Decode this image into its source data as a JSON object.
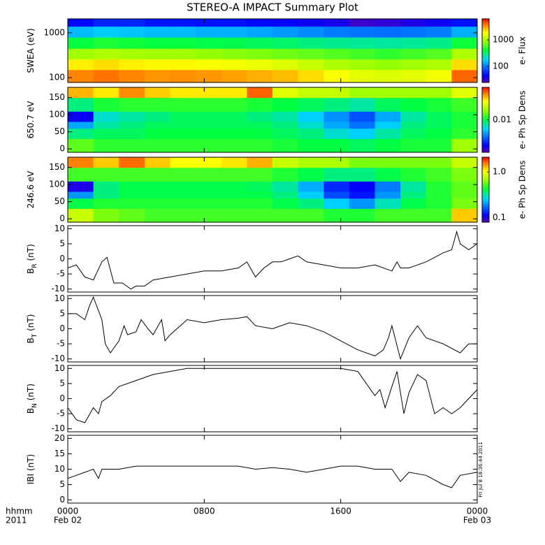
{
  "title": "STEREO-A IMPACT Summary Plot",
  "timestamp": "Fri Jul  8 18:36:44 2011",
  "x_axis": {
    "xlim": [
      0,
      24
    ],
    "xticks": [
      {
        "value": 0,
        "label": "0000"
      },
      {
        "value": 8,
        "label": "0800"
      },
      {
        "value": 16,
        "label": "1600"
      },
      {
        "value": 24,
        "label": "0000"
      }
    ],
    "date_labels": [
      "Feb 02",
      "Feb 03"
    ],
    "left_labels": [
      "hhmm",
      "2011"
    ]
  },
  "chart_data": [
    {
      "type": "heatmap",
      "ylabel": "SWEA (eV)",
      "ylog": true,
      "ylim": [
        78,
        2050
      ],
      "yticks": [
        100,
        1000
      ],
      "zlabel": "e- Flux",
      "zlog": true,
      "zlim": [
        25,
        6200
      ],
      "zticks": [
        100,
        1000
      ],
      "xbins": [
        0,
        1.5,
        3,
        4.5,
        6,
        7.5,
        9,
        10.5,
        12,
        13.5,
        15,
        16.5,
        18,
        19.5,
        21,
        22.5,
        24
      ],
      "ybins": [
        78,
        150,
        260,
        450,
        800,
        1400,
        2050
      ],
      "z": [
        [
          3500,
          3800,
          3500,
          3200,
          3300,
          3200,
          3000,
          2800,
          2600,
          2200,
          1800,
          1500,
          1400,
          1500,
          1700,
          4000
        ],
        [
          2000,
          2200,
          2000,
          1900,
          1900,
          1800,
          1700,
          1600,
          1400,
          1200,
          1000,
          900,
          850,
          900,
          1000,
          2200
        ],
        [
          900,
          1000,
          950,
          900,
          900,
          850,
          800,
          750,
          700,
          650,
          600,
          550,
          500,
          550,
          600,
          1000
        ],
        [
          400,
          450,
          420,
          400,
          400,
          380,
          370,
          350,
          330,
          300,
          280,
          270,
          260,
          270,
          290,
          420
        ],
        [
          150,
          170,
          160,
          150,
          150,
          140,
          140,
          130,
          120,
          110,
          100,
          95,
          90,
          95,
          100,
          140
        ],
        [
          45,
          55,
          55,
          50,
          50,
          48,
          48,
          45,
          42,
          40,
          38,
          30,
          32,
          36,
          40,
          48
        ]
      ]
    },
    {
      "type": "heatmap",
      "ylabel": "650.7 eV",
      "ylim": [
        -10,
        180
      ],
      "yticks": [
        0,
        50,
        100,
        150
      ],
      "zlabel": "e- Ph Sp Dens",
      "zlog": true,
      "zlim": [
        0.001,
        0.1
      ],
      "zticks": [
        0.01
      ],
      "xbins": [
        0,
        1.5,
        3,
        4.5,
        6,
        7.5,
        9,
        10.5,
        12,
        13.5,
        15,
        16.5,
        18,
        19.5,
        21,
        22.5,
        24
      ],
      "ybins": [
        -10,
        30,
        60,
        80,
        110,
        150,
        180
      ],
      "z": [
        [
          0.015,
          0.012,
          0.012,
          0.012,
          0.012,
          0.012,
          0.012,
          0.012,
          0.011,
          0.01,
          0.01,
          0.009,
          0.01,
          0.011,
          0.011,
          0.02
        ],
        [
          0.008,
          0.009,
          0.009,
          0.01,
          0.01,
          0.01,
          0.01,
          0.01,
          0.009,
          0.008,
          0.006,
          0.005,
          0.007,
          0.009,
          0.01,
          0.012
        ],
        [
          0.004,
          0.007,
          0.008,
          0.009,
          0.009,
          0.009,
          0.009,
          0.009,
          0.008,
          0.006,
          0.004,
          0.003,
          0.005,
          0.008,
          0.009,
          0.011
        ],
        [
          0.0015,
          0.006,
          0.007,
          0.008,
          0.009,
          0.009,
          0.009,
          0.008,
          0.007,
          0.005,
          0.0035,
          0.0025,
          0.004,
          0.007,
          0.009,
          0.011
        ],
        [
          0.008,
          0.011,
          0.012,
          0.012,
          0.012,
          0.012,
          0.012,
          0.011,
          0.01,
          0.009,
          0.008,
          0.007,
          0.009,
          0.01,
          0.011,
          0.013
        ],
        [
          0.05,
          0.04,
          0.06,
          0.045,
          0.04,
          0.04,
          0.04,
          0.07,
          0.03,
          0.025,
          0.025,
          0.02,
          0.02,
          0.02,
          0.02,
          0.03
        ]
      ]
    },
    {
      "type": "heatmap",
      "ylabel": "246.6 eV",
      "ylim": [
        -10,
        180
      ],
      "yticks": [
        0,
        50,
        100,
        150
      ],
      "zlabel": "e- Ph Sp Dens",
      "zlog": true,
      "zlim": [
        0.08,
        2.1
      ],
      "zticks": [
        {
          "value": 1,
          "label": "1.0"
        },
        0.1
      ],
      "xbins": [
        0,
        1.5,
        3,
        4.5,
        6,
        7.5,
        9,
        10.5,
        12,
        13.5,
        15,
        16.5,
        18,
        19.5,
        21,
        22.5,
        24
      ],
      "ybins": [
        -10,
        30,
        60,
        80,
        110,
        150,
        180
      ],
      "z": [
        [
          0.8,
          0.6,
          0.55,
          0.5,
          0.5,
          0.5,
          0.5,
          0.5,
          0.5,
          0.5,
          0.45,
          0.45,
          0.5,
          0.5,
          0.5,
          1.2
        ],
        [
          0.4,
          0.45,
          0.45,
          0.45,
          0.45,
          0.45,
          0.45,
          0.45,
          0.4,
          0.35,
          0.25,
          0.2,
          0.3,
          0.4,
          0.45,
          0.6
        ],
        [
          0.2,
          0.35,
          0.4,
          0.4,
          0.4,
          0.4,
          0.4,
          0.4,
          0.35,
          0.25,
          0.15,
          0.12,
          0.2,
          0.35,
          0.45,
          0.55
        ],
        [
          0.1,
          0.35,
          0.4,
          0.4,
          0.4,
          0.4,
          0.4,
          0.38,
          0.32,
          0.22,
          0.13,
          0.11,
          0.18,
          0.32,
          0.45,
          0.55
        ],
        [
          0.5,
          0.5,
          0.5,
          0.5,
          0.5,
          0.5,
          0.5,
          0.5,
          0.45,
          0.4,
          0.35,
          0.35,
          0.4,
          0.45,
          0.5,
          0.6
        ],
        [
          1.5,
          1.2,
          1.6,
          1.2,
          1.0,
          1.0,
          1.1,
          1.3,
          0.8,
          0.7,
          0.7,
          0.6,
          0.6,
          0.6,
          0.6,
          0.8
        ]
      ]
    },
    {
      "type": "line",
      "ylabel": "B",
      "ylabel_sub": "R",
      "ylabel_unit": "(nT)",
      "ylim": [
        -11,
        11
      ],
      "yticks": [
        -10,
        -5,
        0,
        5,
        10
      ],
      "color": "#000000",
      "x": [
        0,
        0.5,
        1,
        1.5,
        2,
        2.3,
        2.7,
        3.2,
        3.7,
        4,
        4.5,
        5,
        6,
        7,
        8,
        9,
        10,
        10.5,
        11,
        11.5,
        12,
        12.5,
        13,
        13.5,
        14,
        15,
        16,
        17,
        18,
        19,
        19.3,
        19.5,
        20,
        21,
        22,
        22.5,
        22.8,
        23,
        23.5,
        24
      ],
      "values": [
        -3,
        -2,
        -6,
        -7,
        -1,
        0.5,
        -8,
        -8,
        -10,
        -9,
        -9,
        -7,
        -6,
        -5,
        -4,
        -4,
        -3,
        -1,
        -6,
        -3,
        -1,
        -1,
        0,
        1,
        -1,
        -2,
        -3,
        -3,
        -2,
        -4,
        -1,
        -3,
        -3,
        -1,
        2,
        3,
        9,
        5,
        3,
        5
      ]
    },
    {
      "type": "line",
      "ylabel": "B",
      "ylabel_sub": "T",
      "ylabel_unit": "(nT)",
      "ylim": [
        -11,
        11
      ],
      "yticks": [
        -10,
        -5,
        0,
        5,
        10
      ],
      "color": "#000000",
      "x": [
        0,
        0.5,
        1,
        1.3,
        1.5,
        2,
        2.2,
        2.5,
        3,
        3.3,
        3.5,
        4,
        4.3,
        4.7,
        5,
        5.5,
        5.7,
        6,
        7,
        8,
        9,
        10,
        10.5,
        11,
        12,
        13,
        14,
        15,
        16,
        17,
        18,
        18.5,
        18.8,
        19,
        19.5,
        20,
        20.5,
        21,
        22,
        23,
        23.5,
        24
      ],
      "values": [
        5,
        5,
        3,
        8,
        10.5,
        3,
        -5,
        -8,
        -4,
        1,
        -2,
        -1,
        3,
        0,
        -2,
        3,
        -4,
        -2,
        3,
        2,
        3,
        3.5,
        4,
        1,
        0,
        2,
        1,
        -1,
        -4,
        -7,
        -9,
        -7,
        -3,
        1,
        -10,
        -3,
        1,
        -3,
        -5,
        -8,
        -5,
        -5
      ]
    },
    {
      "type": "line",
      "ylabel": "B",
      "ylabel_sub": "N",
      "ylabel_unit": "(nT)",
      "ylim": [
        -11,
        11
      ],
      "yticks": [
        -10,
        -5,
        0,
        5,
        10
      ],
      "color": "#000000",
      "x": [
        0,
        0.5,
        1,
        1.5,
        1.8,
        2,
        2.5,
        3,
        4,
        5,
        6,
        7,
        8,
        9,
        10,
        11,
        12,
        13,
        14,
        15,
        16,
        17,
        17.5,
        18,
        18.3,
        18.6,
        19,
        19.3,
        19.7,
        20,
        20.5,
        21,
        21.5,
        22,
        22.5,
        23,
        23.5,
        24
      ],
      "values": [
        -3,
        -7,
        -8,
        -3,
        -5,
        -1,
        1,
        4,
        6,
        8,
        9,
        10,
        10,
        10,
        10,
        10,
        10,
        10,
        10,
        10,
        10,
        9,
        5,
        1,
        3,
        -3,
        4,
        9,
        -5,
        2,
        8,
        6,
        -5,
        -3,
        -5,
        -3,
        0,
        3
      ]
    },
    {
      "type": "line",
      "ylabel": "IBI",
      "ylabel_unit": "(nT)",
      "ylim": [
        -1,
        21
      ],
      "yticks": [
        0,
        5,
        10,
        15,
        20
      ],
      "color": "#000000",
      "x": [
        0,
        0.5,
        1,
        1.5,
        1.8,
        2,
        3,
        4,
        5,
        6,
        8,
        10,
        11,
        12,
        13,
        14,
        15,
        16,
        17,
        18,
        19,
        19.5,
        20,
        21,
        22,
        22.5,
        23,
        24
      ],
      "values": [
        7,
        8,
        9,
        10,
        7,
        10,
        10,
        11,
        11,
        11,
        11,
        11,
        10,
        10.5,
        10,
        9,
        10,
        11,
        11,
        10,
        10,
        6,
        9,
        8,
        5,
        4,
        8,
        9
      ]
    }
  ]
}
